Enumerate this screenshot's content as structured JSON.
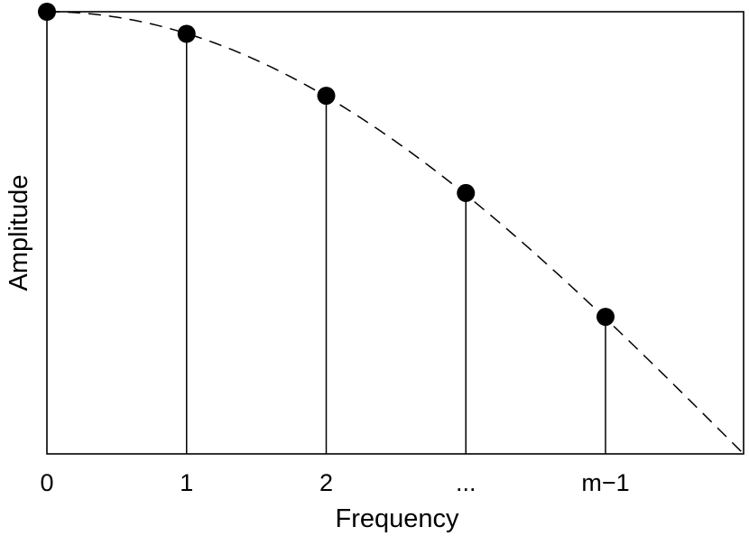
{
  "chart_data": {
    "type": "stem",
    "title": "",
    "xlabel": "Frequency",
    "ylabel": "Amplitude",
    "categories": [
      "0",
      "1",
      "2",
      "...",
      "m−1"
    ],
    "values": [
      1.0,
      0.95,
      0.81,
      0.59,
      0.31
    ],
    "ylim": [
      0,
      1
    ],
    "envelope": {
      "style": "dashed",
      "description_values": "cosine roll-off from 1 at 0 to 0 just past m−1"
    },
    "grid": false,
    "legend": "none"
  }
}
